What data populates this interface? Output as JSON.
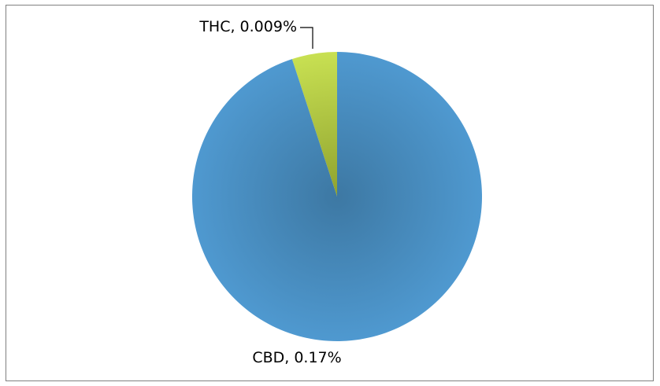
{
  "chart_data": {
    "type": "pie",
    "title": "",
    "slices": [
      {
        "label": "CBD, 0.17%",
        "name": "CBD",
        "value": 0.17,
        "color": "#4A8FC4"
      },
      {
        "label": "THC, 0.009%",
        "name": "THC",
        "value": 0.009,
        "color": "#B7D14A"
      }
    ],
    "legend": "none",
    "start_angle": "12 o'clock",
    "direction": "clockwise",
    "label_style": "outside with leader line"
  }
}
